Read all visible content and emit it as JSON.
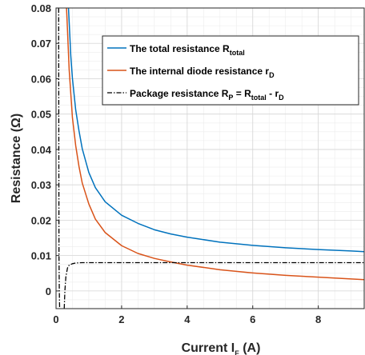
{
  "chart_data": {
    "type": "line",
    "xlabel": {
      "main": "Current I",
      "sub": "F",
      "tail": " (A)"
    },
    "ylabel": "Resistance (Ω)",
    "xlim": [
      0,
      9.4
    ],
    "ylim": [
      -0.005,
      0.08
    ],
    "xticks": [
      0,
      2,
      4,
      6,
      8
    ],
    "xtick_labels": [
      "0",
      "2",
      "4",
      "6",
      "8"
    ],
    "yticks": [
      0,
      0.01,
      0.02,
      0.03,
      0.04,
      0.05,
      0.06,
      0.07,
      0.08
    ],
    "ytick_labels": [
      "0",
      "0.01",
      "0.02",
      "0.03",
      "0.04",
      "0.05",
      "0.06",
      "0.07",
      "0.08"
    ],
    "grid": true,
    "legend_position": "top-right",
    "series": [
      {
        "key": "total",
        "legend": {
          "main": "The total resistance R",
          "sub": "total",
          "tail": ""
        },
        "color": "#0072BD",
        "dash": "solid",
        "x": [
          0.38,
          0.45,
          0.5,
          0.6,
          0.7,
          0.8,
          1.0,
          1.2,
          1.5,
          2.0,
          2.5,
          3.0,
          3.5,
          4.0,
          5.0,
          6.0,
          7.0,
          8.0,
          9.0,
          9.4
        ],
        "y": [
          0.08,
          0.0665,
          0.0601,
          0.0512,
          0.0453,
          0.0402,
          0.0335,
          0.0292,
          0.0252,
          0.0214,
          0.0191,
          0.0173,
          0.0161,
          0.0152,
          0.0138,
          0.0129,
          0.0122,
          0.0117,
          0.0113,
          0.0111
        ]
      },
      {
        "key": "diode",
        "legend": {
          "main": "The internal diode resistance r",
          "sub": "D",
          "tail": ""
        },
        "color": "#D95319",
        "dash": "solid",
        "x": [
          0.32,
          0.35,
          0.4,
          0.5,
          0.6,
          0.7,
          0.8,
          1.0,
          1.2,
          1.5,
          2.0,
          2.5,
          3.0,
          3.5,
          4.0,
          5.0,
          6.0,
          7.0,
          8.0,
          9.0,
          9.4
        ],
        "y": [
          0.08,
          0.0736,
          0.0627,
          0.049,
          0.0411,
          0.0352,
          0.0305,
          0.0246,
          0.0203,
          0.0165,
          0.0128,
          0.0106,
          0.0092,
          0.0082,
          0.0073,
          0.006,
          0.0051,
          0.0044,
          0.0039,
          0.0034,
          0.0032
        ]
      },
      {
        "key": "package",
        "legend": {
          "main": "Package resistance R",
          "sub": "P",
          "tail": " = R",
          "sub2": "total",
          "tail2": " -  r",
          "sub3": "D"
        },
        "color": "#000000",
        "dash": "dashdot",
        "x": [
          0.25,
          0.27,
          0.3,
          0.35,
          0.4,
          0.5,
          0.6,
          0.8,
          1.0,
          1.5,
          2.0,
          3.0,
          4.0,
          5.0,
          6.0,
          7.0,
          8.0,
          9.0,
          9.4
        ],
        "y": [
          -0.005,
          0.0,
          0.004,
          0.0065,
          0.0073,
          0.0077,
          0.0079,
          0.008,
          0.008,
          0.008,
          0.008,
          0.008,
          0.008,
          0.008,
          0.008,
          0.008,
          0.008,
          0.008,
          0.008
        ]
      },
      {
        "key": "package_left",
        "color": "#000000",
        "dash": "dashdot",
        "x": [
          0.08,
          0.085,
          0.09,
          0.1,
          0.11
        ],
        "y": [
          0.08,
          0.04,
          0.01,
          0.0,
          -0.005
        ]
      }
    ]
  }
}
